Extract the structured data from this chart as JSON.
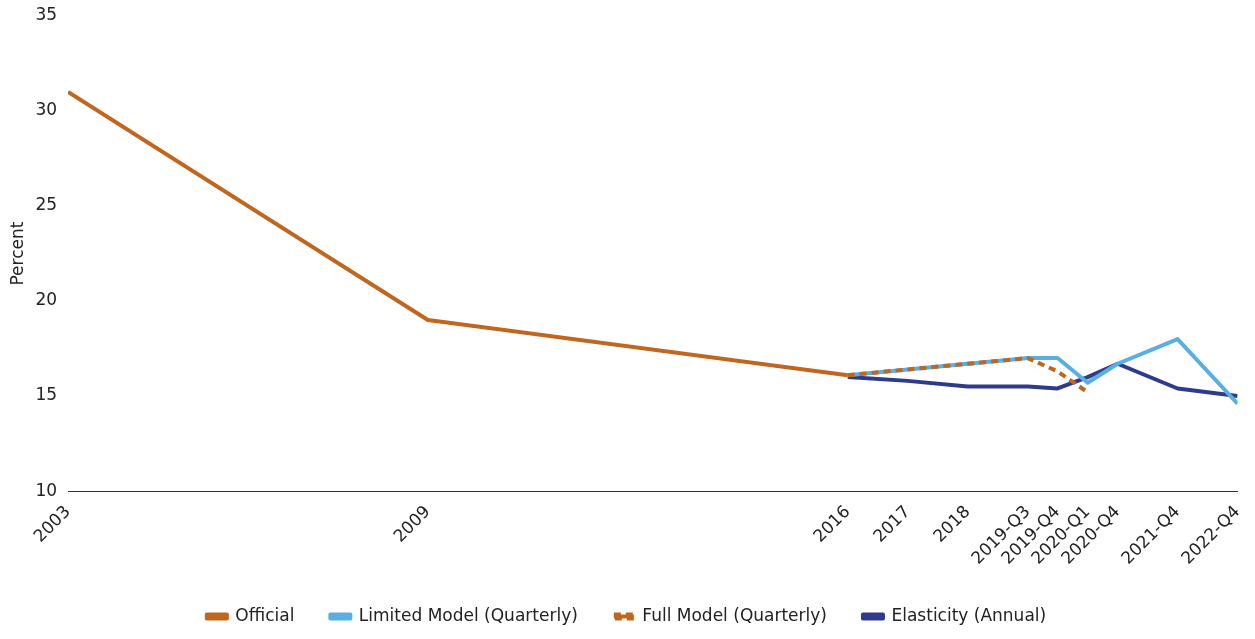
{
  "chart_data": {
    "type": "line",
    "ylabel": "Percent",
    "xlim": [
      2003,
      2022.5
    ],
    "ylim": [
      10,
      35
    ],
    "yticks": [
      10,
      15,
      20,
      25,
      30,
      35
    ],
    "xticks": [
      {
        "value": 2003,
        "label": "2003"
      },
      {
        "value": 2009,
        "label": "2009"
      },
      {
        "value": 2016,
        "label": "2016"
      },
      {
        "value": 2017,
        "label": "2017"
      },
      {
        "value": 2018,
        "label": "2018"
      },
      {
        "value": 2019,
        "label": "2019-Q3"
      },
      {
        "value": 2019.5,
        "label": "2019-Q4"
      },
      {
        "value": 2020,
        "label": "2020-Q1"
      },
      {
        "value": 2020.5,
        "label": "2020-Q4"
      },
      {
        "value": 2021.5,
        "label": "2021-Q4"
      },
      {
        "value": 2022.5,
        "label": "2022-Q4"
      }
    ],
    "grid": false,
    "legend": "bottom",
    "marker": "none",
    "series": [
      {
        "name": "Official",
        "color": "#c0661e",
        "line_style": "solid",
        "x": [
          2003,
          2009,
          2016
        ],
        "values": [
          31,
          19,
          16.1
        ]
      },
      {
        "name": "Limited Model (Quarterly)",
        "color": "#5aaee0",
        "line_style": "solid",
        "x": [
          2016,
          2017,
          2018,
          2019,
          2019.5,
          2020,
          2020.5,
          2021.5,
          2022.5
        ],
        "values": [
          16.1,
          16.4,
          16.7,
          17.0,
          17.0,
          15.7,
          16.7,
          18.0,
          14.6
        ]
      },
      {
        "name": "Full Model (Quarterly)",
        "color": "#c0661e",
        "line_style": "dashed",
        "x": [
          2016,
          2017,
          2018,
          2019,
          2019.5,
          2020
        ],
        "values": [
          16.1,
          16.4,
          16.7,
          17.0,
          16.3,
          15.2
        ]
      },
      {
        "name": "Elasticity (Annual)",
        "color": "#2e3a8c",
        "line_style": "solid",
        "x": [
          2016,
          2017,
          2018,
          2019,
          2019.5,
          2020,
          2020.5,
          2021.5,
          2022.5
        ],
        "values": [
          16.0,
          15.8,
          15.5,
          15.5,
          15.4,
          16.0,
          16.7,
          15.4,
          15.0
        ]
      }
    ]
  }
}
